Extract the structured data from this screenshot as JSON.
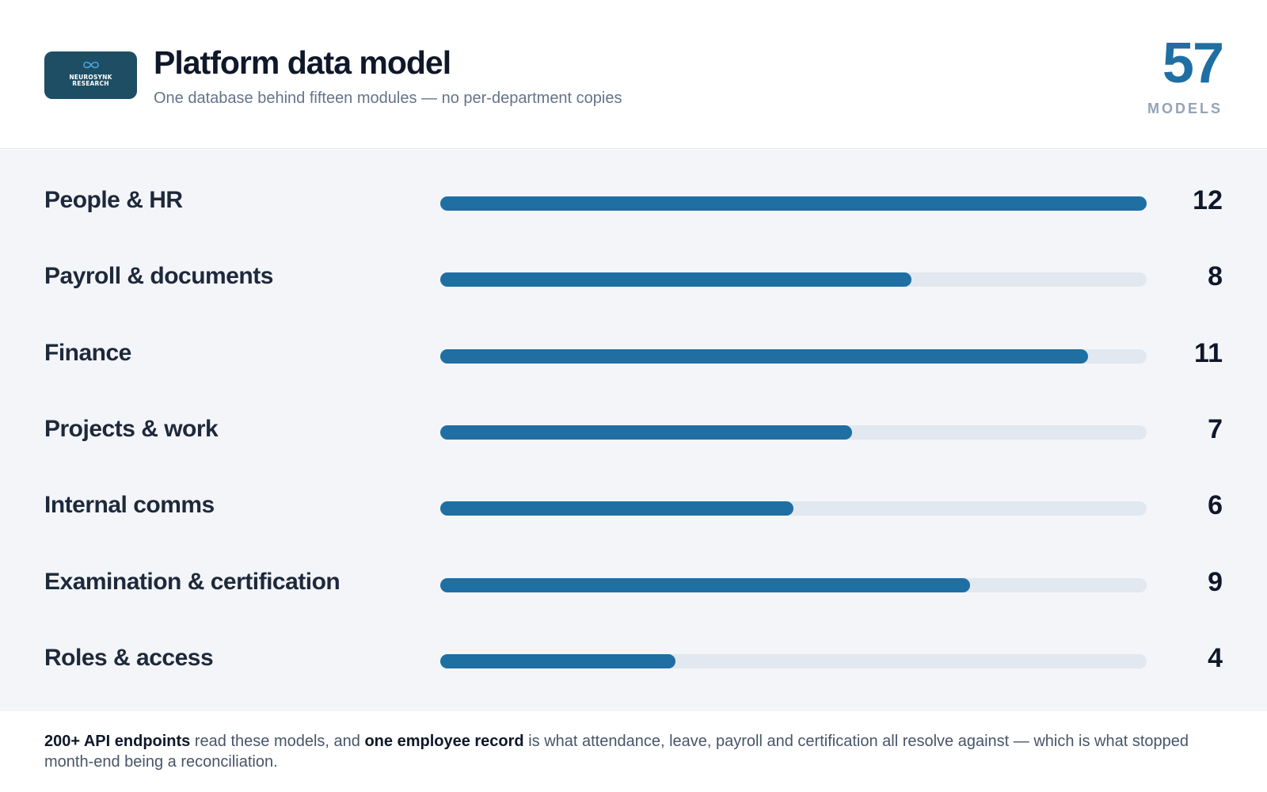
{
  "header": {
    "logo_line1": "NEUROSYNK",
    "logo_line2": "RESEARCH",
    "logo_icon": "infinity-icon",
    "title": "Platform data model",
    "subtitle": "One database behind fifteen modules — no per-department copies",
    "total": "57",
    "total_label": "MODELS"
  },
  "colors": {
    "accent": "#1f6fa3",
    "track": "#e2e8f0",
    "logo_bg": "#1d4e63",
    "chart_bg": "#f3f5f9"
  },
  "chart_data": {
    "type": "bar",
    "orientation": "horizontal",
    "categories": [
      "People & HR",
      "Payroll & documents",
      "Finance",
      "Projects & work",
      "Internal comms",
      "Examination & certification",
      "Roles & access"
    ],
    "values": [
      12,
      8,
      11,
      7,
      6,
      9,
      4
    ],
    "xlim": [
      0,
      12
    ],
    "grid": false
  },
  "footer": {
    "strong1": "200+ API endpoints",
    "text1": " read these models, and ",
    "strong2": "one employee record",
    "text2": " is what attendance, leave, payroll and certification all resolve against — which is what stopped month-end being a reconciliation."
  }
}
